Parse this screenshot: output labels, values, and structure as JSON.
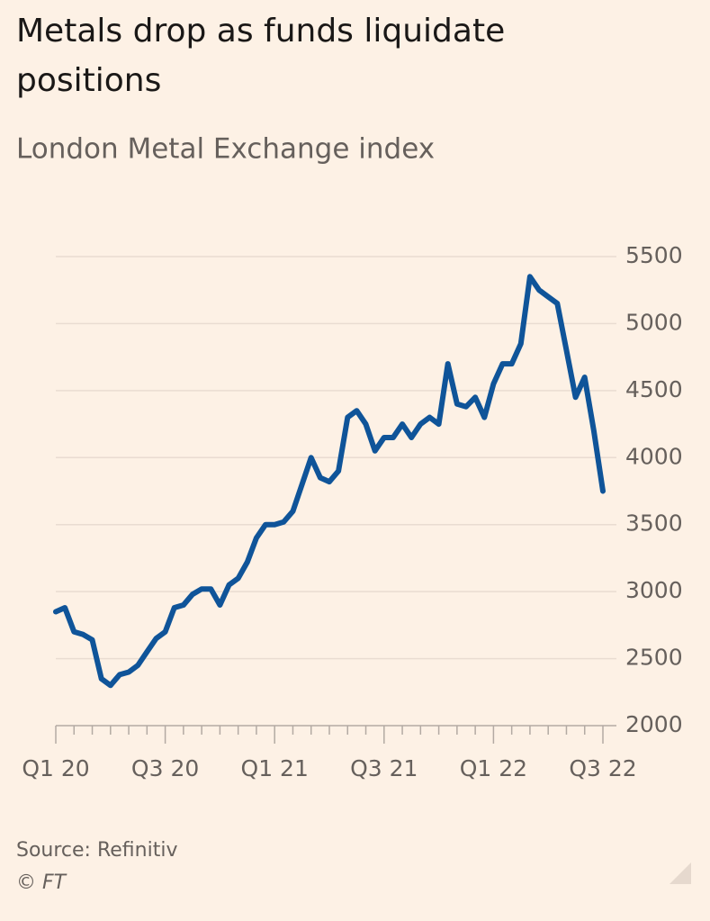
{
  "chart_data": {
    "type": "line",
    "title": "Metals drop as funds liquidate positions",
    "subtitle": "London Metal Exchange index",
    "source": "Source: Refinitiv",
    "credit": "© FT",
    "categories": [
      "Q1 20",
      null,
      null,
      null,
      null,
      null,
      null,
      null,
      null,
      null,
      null,
      null,
      "Q3 20",
      null,
      null,
      null,
      null,
      null,
      null,
      null,
      null,
      null,
      null,
      null,
      "Q1 21",
      null,
      null,
      null,
      null,
      null,
      null,
      null,
      null,
      null,
      null,
      null,
      "Q3 21",
      null,
      null,
      null,
      null,
      null,
      null,
      null,
      null,
      null,
      null,
      null,
      "Q1 22",
      null,
      null,
      null,
      null,
      null,
      null,
      null,
      null,
      null,
      null,
      null,
      "Q3 22"
    ],
    "series": [
      {
        "name": "London Metal Exchange index",
        "color": "#0f5499",
        "values": [
          2850,
          2880,
          2700,
          2680,
          2640,
          2350,
          2300,
          2380,
          2400,
          2450,
          2550,
          2650,
          2700,
          2880,
          2900,
          2980,
          3020,
          3020,
          2900,
          3050,
          3100,
          3220,
          3400,
          3500,
          3500,
          3520,
          3600,
          3800,
          4000,
          3850,
          3820,
          3900,
          4300,
          4350,
          4250,
          4050,
          4150,
          4150,
          4250,
          4150,
          4250,
          4300,
          4250,
          4700,
          4400,
          4380,
          4450,
          4300,
          4550,
          4700,
          4700,
          4850,
          5350,
          5250,
          5200,
          5150,
          4800,
          4450,
          4600,
          4200,
          3750
        ]
      }
    ],
    "ylim": [
      2000,
      5500
    ],
    "yticks": [
      2000,
      2500,
      3000,
      3500,
      4000,
      4500,
      5000,
      5500
    ],
    "grid": true
  }
}
